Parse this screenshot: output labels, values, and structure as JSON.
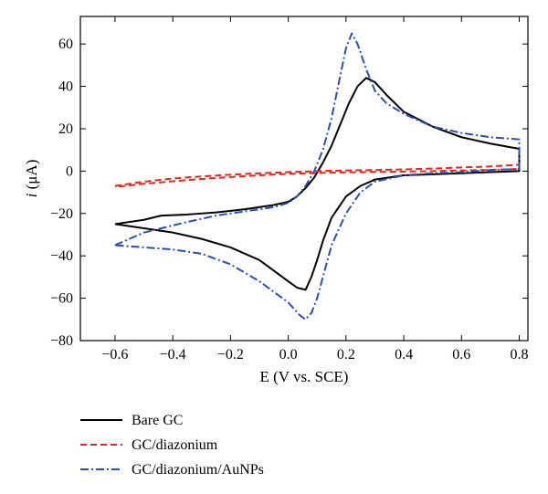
{
  "chart_data": {
    "type": "line",
    "title": "",
    "xlabel": "E (V vs. SCE)",
    "ylabel_italic": "i",
    "ylabel_rest": " (μA)",
    "xlim": [
      -0.72,
      0.83
    ],
    "ylim": [
      -80,
      73
    ],
    "xticks": [
      -0.6,
      -0.4,
      -0.2,
      0.0,
      0.2,
      0.4,
      0.6,
      0.8
    ],
    "xtick_labels": [
      "−0.6",
      "−0.4",
      "−0.2",
      "0.0",
      "0.2",
      "0.4",
      "0.6",
      "0.8"
    ],
    "yticks": [
      -80,
      -60,
      -40,
      -20,
      0,
      20,
      40,
      60
    ],
    "ytick_labels": [
      "−80",
      "−60",
      "−40",
      "−20",
      "0",
      "20",
      "40",
      "60"
    ],
    "grid": false,
    "legend_position": "bottom-left, below plot",
    "series": [
      {
        "name": "Bare GC",
        "color": "#000000",
        "dash": "solid",
        "x": [
          -0.6,
          -0.55,
          -0.5,
          -0.44,
          -0.35,
          -0.25,
          -0.15,
          -0.05,
          0.0,
          0.03,
          0.06,
          0.09,
          0.12,
          0.15,
          0.18,
          0.21,
          0.24,
          0.27,
          0.3,
          0.34,
          0.4,
          0.5,
          0.6,
          0.7,
          0.8,
          0.8,
          0.7,
          0.6,
          0.5,
          0.4,
          0.3,
          0.25,
          0.2,
          0.15,
          0.12,
          0.1,
          0.08,
          0.06,
          0.03,
          0.0,
          -0.05,
          -0.1,
          -0.2,
          -0.3,
          -0.4,
          -0.5,
          -0.6
        ],
        "y": [
          -25,
          -24,
          -23,
          -21,
          -20.5,
          -19.5,
          -18,
          -16,
          -14.5,
          -12,
          -8,
          -3,
          4,
          12,
          22,
          32,
          40,
          44,
          42,
          36,
          28,
          21,
          16,
          13,
          10.5,
          0,
          -0.5,
          -1,
          -1.5,
          -2,
          -4,
          -7,
          -12,
          -22,
          -33,
          -42,
          -50,
          -56,
          -55,
          -52,
          -47,
          -42,
          -36,
          -32,
          -29,
          -27,
          -25
        ]
      },
      {
        "name": "GC/diazonium",
        "color": "#e8261c",
        "dash": "dashed",
        "x": [
          -0.6,
          -0.5,
          -0.4,
          -0.3,
          -0.2,
          -0.1,
          0.0,
          0.1,
          0.2,
          0.3,
          0.4,
          0.5,
          0.6,
          0.7,
          0.8,
          0.8,
          0.7,
          0.6,
          0.5,
          0.4,
          0.3,
          0.2,
          0.1,
          0.0,
          -0.1,
          -0.2,
          -0.3,
          -0.4,
          -0.5,
          -0.6
        ],
        "y": [
          -7,
          -5,
          -3.5,
          -2.5,
          -1.7,
          -1.0,
          -0.5,
          0,
          0.3,
          0.5,
          0.8,
          1.2,
          1.7,
          2.2,
          3,
          1,
          0.6,
          0.3,
          0,
          -0.2,
          -0.4,
          -0.6,
          -0.9,
          -1.3,
          -2,
          -2.8,
          -3.7,
          -4.8,
          -6,
          -7.5
        ]
      },
      {
        "name": "GC/diazonium/AuNPs",
        "color": "#2c4fae",
        "dash": "dashdot",
        "x": [
          -0.6,
          -0.55,
          -0.5,
          -0.44,
          -0.35,
          -0.25,
          -0.15,
          -0.05,
          0.0,
          0.03,
          0.06,
          0.09,
          0.12,
          0.15,
          0.18,
          0.2,
          0.22,
          0.24,
          0.27,
          0.3,
          0.34,
          0.4,
          0.5,
          0.6,
          0.7,
          0.8,
          0.8,
          0.7,
          0.6,
          0.5,
          0.4,
          0.3,
          0.25,
          0.2,
          0.15,
          0.12,
          0.1,
          0.08,
          0.06,
          0.04,
          0.0,
          -0.1,
          -0.2,
          -0.3,
          -0.4,
          -0.5,
          -0.6
        ],
        "y": [
          -35,
          -32,
          -29,
          -27,
          -24,
          -21,
          -19,
          -17,
          -15,
          -12,
          -7,
          0,
          10,
          25,
          45,
          58,
          65,
          60,
          48,
          38,
          32,
          27,
          21,
          18,
          16,
          15,
          1,
          0.5,
          -0.5,
          -1,
          -2,
          -5,
          -10,
          -20,
          -35,
          -50,
          -60,
          -67,
          -70,
          -68,
          -62,
          -52,
          -44,
          -39,
          -37,
          -36,
          -35
        ]
      }
    ]
  }
}
